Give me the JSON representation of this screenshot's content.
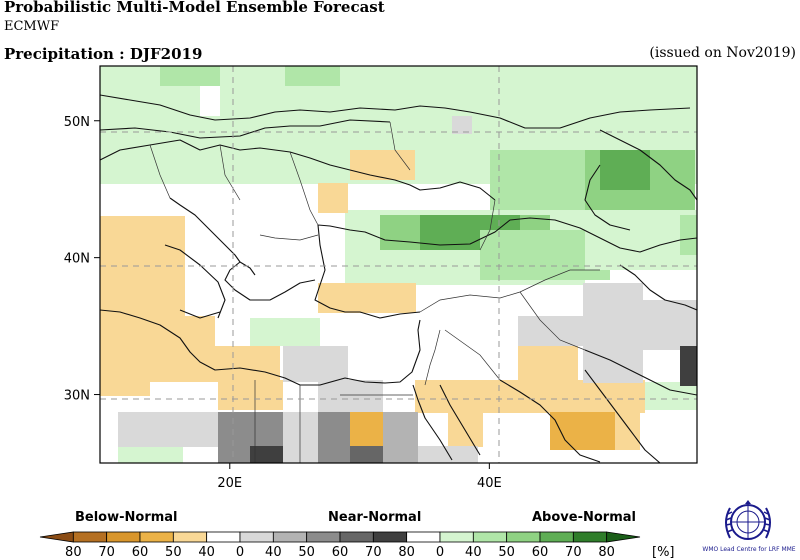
{
  "header": {
    "title": "Probabilistic Multi-Model Ensemble Forecast",
    "model": "ECMWF",
    "product": "Precipitation : DJF2019",
    "issued": "(issued on Nov2019)"
  },
  "map": {
    "lon_range": [
      10,
      56
    ],
    "lat_range": [
      25,
      54
    ],
    "lat_ticks": [
      {
        "value": 50,
        "label": "50N"
      },
      {
        "value": 40,
        "label": "40N"
      },
      {
        "value": 30,
        "label": "30N"
      }
    ],
    "lon_ticks": [
      {
        "value": 20,
        "label": "20E"
      },
      {
        "value": 40,
        "label": "40E"
      }
    ],
    "categories": {
      "below": [
        "#c8842a",
        "#d9a23c",
        "#e8b450",
        "#f6d58c"
      ],
      "near": [
        "#d8d8d8",
        "#bdbdbd",
        "#9a9a9a",
        "#747474",
        "#4a4a4a"
      ],
      "above": [
        "#ccf2cc",
        "#aee6a8",
        "#8ed686",
        "#5fb85a",
        "#2e8c2e"
      ]
    }
  },
  "legend": {
    "below_label": "Below-Normal",
    "near_label": "Near-Normal",
    "above_label": "Above-Normal",
    "unit": "[%]",
    "tick_labels": [
      "80",
      "70",
      "60",
      "50",
      "40",
      "0",
      "40",
      "50",
      "60",
      "70",
      "80",
      "0",
      "40",
      "50",
      "60",
      "70",
      "80"
    ],
    "colors": [
      "#8b4c14",
      "#b57022",
      "#d9962c",
      "#ebb247",
      "#f9d896",
      "#ffffff",
      "#d9d9d9",
      "#b3b3b3",
      "#8c8c8c",
      "#666666",
      "#3f3f3f",
      "#ffffff",
      "#d5f5d0",
      "#b0e6a8",
      "#8fd283",
      "#5fae55",
      "#2f7d2a",
      "#1a5e18"
    ]
  },
  "logo": {
    "name": "WMO Lead Centre for LRF MME"
  }
}
